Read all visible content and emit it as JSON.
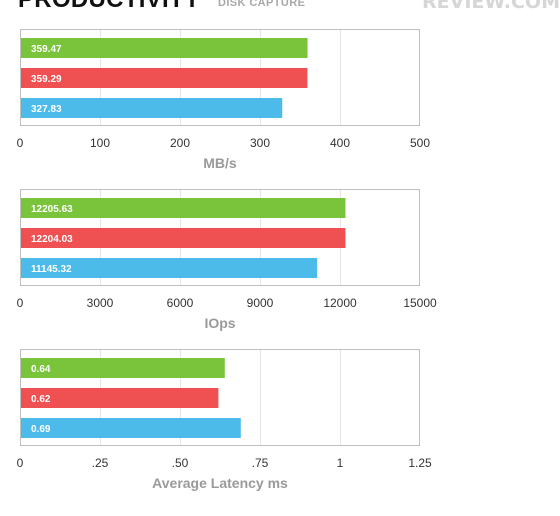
{
  "header": {
    "title": "PRODUCTIVITY",
    "subtitle": "DISK CAPTURE",
    "logo": "REVIEW.COM"
  },
  "colors": {
    "green": "#79c43b",
    "red": "#ef5052",
    "blue": "#4dbbe9",
    "frame": "#bfbfbf",
    "grid": "#e6e6e6",
    "tick_text": "#333333",
    "axis_title": "#9a9a9a"
  },
  "chart_data": [
    {
      "type": "bar",
      "orientation": "horizontal",
      "xlabel": "MB/s",
      "xlim": [
        0,
        500
      ],
      "ticks": [
        0,
        100,
        200,
        300,
        400,
        500
      ],
      "tick_labels": [
        "0",
        "100",
        "200",
        "300",
        "400",
        "500"
      ],
      "grid": true,
      "values": [
        359.47,
        359.29,
        327.83
      ],
      "value_labels": [
        "359.47",
        "359.29",
        "327.83"
      ],
      "bar_colors": [
        "#79c43b",
        "#ef5052",
        "#4dbbe9"
      ]
    },
    {
      "type": "bar",
      "orientation": "horizontal",
      "xlabel": "IOps",
      "xlim": [
        0,
        15000
      ],
      "ticks": [
        0,
        3000,
        6000,
        9000,
        12000,
        15000
      ],
      "tick_labels": [
        "0",
        "3000",
        "6000",
        "9000",
        "12000",
        "15000"
      ],
      "grid": true,
      "values": [
        12205.63,
        12204.03,
        11145.32
      ],
      "value_labels": [
        "12205.63",
        "12204.03",
        "11145.32"
      ],
      "bar_colors": [
        "#79c43b",
        "#ef5052",
        "#4dbbe9"
      ]
    },
    {
      "type": "bar",
      "orientation": "horizontal",
      "xlabel": "Average Latency ms",
      "xlim": [
        0,
        1.25
      ],
      "ticks": [
        0,
        0.25,
        0.5,
        0.75,
        1,
        1.25
      ],
      "tick_labels": [
        "0",
        ".25",
        ".50",
        ".75",
        "1",
        "1.25"
      ],
      "grid": true,
      "values": [
        0.64,
        0.62,
        0.69
      ],
      "value_labels": [
        "0.64",
        "0.62",
        "0.69"
      ],
      "bar_colors": [
        "#79c43b",
        "#ef5052",
        "#4dbbe9"
      ]
    }
  ]
}
